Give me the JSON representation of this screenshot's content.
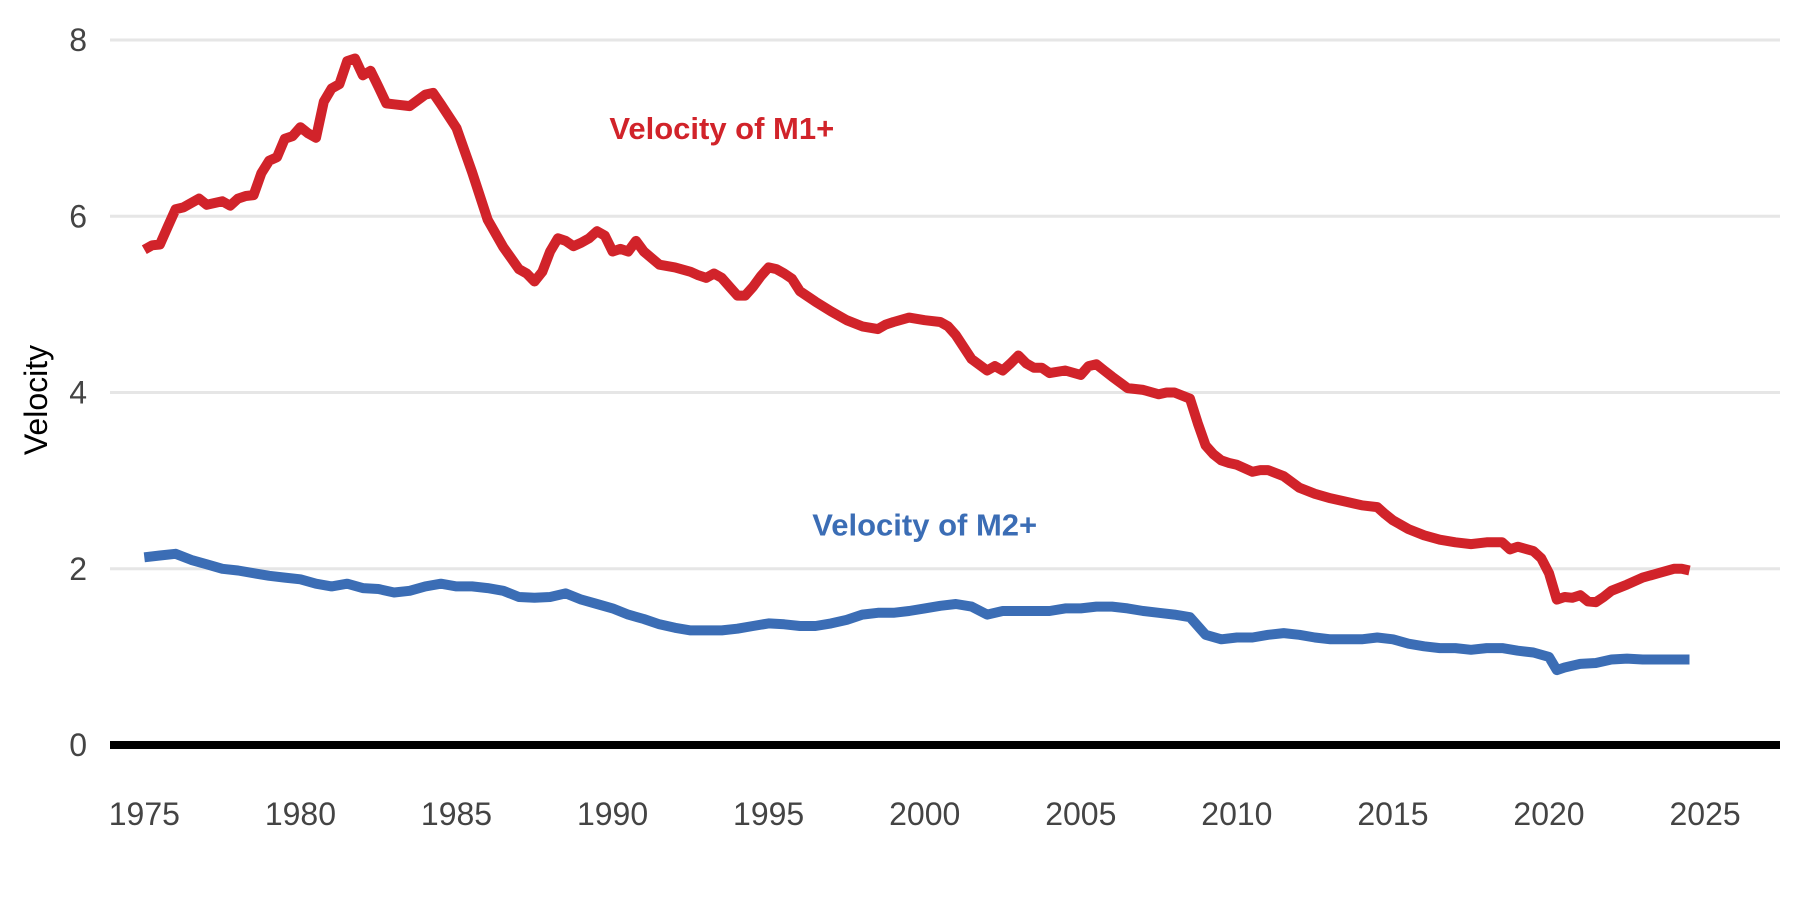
{
  "chart_data": {
    "type": "line",
    "title": "",
    "xlabel": "",
    "ylabel": "Velocity",
    "xlim": [
      1973.9,
      2027.4
    ],
    "ylim": [
      0,
      8
    ],
    "x_ticks": [
      "1975",
      "1980",
      "1985",
      "1990",
      "1995",
      "2000",
      "2005",
      "2010",
      "2015",
      "2020",
      "2025"
    ],
    "y_ticks": [
      "0",
      "2",
      "4",
      "6",
      "8"
    ],
    "grid": true,
    "legend": "none (series labelled directly on the plot)",
    "series": [
      {
        "name": "Velocity of M1+",
        "color": "#d1232a",
        "x": [
          1975.0,
          1975.25,
          1975.5,
          1975.75,
          1976.0,
          1976.25,
          1976.5,
          1976.75,
          1977.0,
          1977.25,
          1977.5,
          1977.75,
          1978.0,
          1978.25,
          1978.5,
          1978.75,
          1979.0,
          1979.25,
          1979.5,
          1979.75,
          1980.0,
          1980.25,
          1980.5,
          1980.75,
          1981.0,
          1981.25,
          1981.5,
          1981.75,
          1982.0,
          1982.25,
          1982.5,
          1982.75,
          1983.0,
          1983.5,
          1984.0,
          1984.25,
          1984.5,
          1985.0,
          1985.5,
          1986.0,
          1986.5,
          1987.0,
          1987.25,
          1987.5,
          1987.75,
          1988.0,
          1988.25,
          1988.5,
          1988.75,
          1989.0,
          1989.25,
          1989.5,
          1989.75,
          1990.0,
          1990.25,
          1990.5,
          1990.75,
          1991.0,
          1991.5,
          1992.0,
          1992.5,
          1992.75,
          1993.0,
          1993.25,
          1993.5,
          1993.75,
          1994.0,
          1994.25,
          1994.5,
          1994.75,
          1995.0,
          1995.25,
          1995.5,
          1995.75,
          1996.0,
          1996.5,
          1997.0,
          1997.5,
          1998.0,
          1998.5,
          1998.75,
          1999.0,
          1999.5,
          2000.0,
          2000.5,
          2000.75,
          2001.0,
          2001.5,
          2002.0,
          2002.25,
          2002.5,
          2002.75,
          2003.0,
          2003.25,
          2003.5,
          2003.75,
          2004.0,
          2004.5,
          2005.0,
          2005.25,
          2005.5,
          2005.75,
          2006.0,
          2006.5,
          2007.0,
          2007.5,
          2007.75,
          2008.0,
          2008.5,
          2008.75,
          2009.0,
          2009.25,
          2009.5,
          2009.75,
          2010.0,
          2010.5,
          2010.75,
          2011.0,
          2011.5,
          2012.0,
          2012.5,
          2013.0,
          2013.5,
          2014.0,
          2014.5,
          2014.75,
          2015.0,
          2015.5,
          2016.0,
          2016.5,
          2017.0,
          2017.5,
          2018.0,
          2018.5,
          2018.75,
          2019.0,
          2019.5,
          2019.75,
          2020.0,
          2020.25,
          2020.5,
          2020.75,
          2021.0,
          2021.25,
          2021.5,
          2021.75,
          2022.0,
          2022.5,
          2023.0,
          2023.5,
          2024.0,
          2024.25,
          2024.5
        ],
        "y": [
          5.62,
          5.67,
          5.68,
          5.88,
          6.08,
          6.1,
          6.15,
          6.2,
          6.13,
          6.15,
          6.17,
          6.12,
          6.2,
          6.23,
          6.24,
          6.49,
          6.63,
          6.67,
          6.88,
          6.91,
          7.01,
          6.94,
          6.89,
          7.3,
          7.45,
          7.5,
          7.76,
          7.79,
          7.6,
          7.65,
          7.47,
          7.28,
          7.27,
          7.25,
          7.38,
          7.4,
          7.27,
          7.0,
          6.5,
          5.96,
          5.65,
          5.4,
          5.35,
          5.26,
          5.37,
          5.6,
          5.75,
          5.72,
          5.66,
          5.7,
          5.75,
          5.83,
          5.78,
          5.6,
          5.63,
          5.6,
          5.72,
          5.6,
          5.45,
          5.42,
          5.37,
          5.33,
          5.3,
          5.35,
          5.3,
          5.2,
          5.1,
          5.1,
          5.2,
          5.32,
          5.42,
          5.4,
          5.35,
          5.29,
          5.15,
          5.03,
          4.92,
          4.82,
          4.75,
          4.72,
          4.77,
          4.8,
          4.85,
          4.82,
          4.8,
          4.75,
          4.65,
          4.38,
          4.25,
          4.3,
          4.25,
          4.33,
          4.42,
          4.33,
          4.28,
          4.28,
          4.22,
          4.25,
          4.2,
          4.3,
          4.32,
          4.25,
          4.18,
          4.05,
          4.03,
          3.98,
          4.0,
          4.0,
          3.93,
          3.65,
          3.4,
          3.3,
          3.23,
          3.2,
          3.18,
          3.1,
          3.12,
          3.12,
          3.05,
          2.92,
          2.85,
          2.8,
          2.76,
          2.72,
          2.7,
          2.62,
          2.55,
          2.45,
          2.38,
          2.33,
          2.3,
          2.28,
          2.3,
          2.3,
          2.22,
          2.25,
          2.2,
          2.12,
          1.95,
          1.65,
          1.68,
          1.67,
          1.7,
          1.63,
          1.62,
          1.68,
          1.75,
          1.82,
          1.9,
          1.95,
          2.0,
          2.0,
          1.98
        ]
      },
      {
        "name": "Velocity of M2+",
        "color": "#3b6db5",
        "x": [
          1975.0,
          1975.5,
          1976.0,
          1976.5,
          1977.0,
          1977.5,
          1978.0,
          1978.5,
          1979.0,
          1979.5,
          1980.0,
          1980.5,
          1981.0,
          1981.5,
          1982.0,
          1982.5,
          1983.0,
          1983.5,
          1984.0,
          1984.5,
          1985.0,
          1985.5,
          1986.0,
          1986.5,
          1987.0,
          1987.5,
          1988.0,
          1988.5,
          1989.0,
          1989.5,
          1990.0,
          1990.5,
          1991.0,
          1991.5,
          1992.0,
          1992.5,
          1993.0,
          1993.5,
          1994.0,
          1994.5,
          1995.0,
          1995.5,
          1996.0,
          1996.5,
          1997.0,
          1997.5,
          1998.0,
          1998.5,
          1999.0,
          1999.5,
          2000.0,
          2000.5,
          2001.0,
          2001.5,
          2002.0,
          2002.5,
          2003.0,
          2003.5,
          2004.0,
          2004.5,
          2005.0,
          2005.5,
          2006.0,
          2006.5,
          2007.0,
          2007.5,
          2008.0,
          2008.5,
          2009.0,
          2009.5,
          2010.0,
          2010.5,
          2011.0,
          2011.5,
          2012.0,
          2012.5,
          2013.0,
          2013.5,
          2014.0,
          2014.5,
          2015.0,
          2015.5,
          2016.0,
          2016.5,
          2017.0,
          2017.5,
          2018.0,
          2018.5,
          2019.0,
          2019.5,
          2020.0,
          2020.25,
          2020.5,
          2021.0,
          2021.5,
          2022.0,
          2022.5,
          2023.0,
          2023.5,
          2024.0,
          2024.5
        ],
        "y": [
          2.13,
          2.15,
          2.17,
          2.1,
          2.05,
          2.0,
          1.98,
          1.95,
          1.92,
          1.9,
          1.88,
          1.83,
          1.8,
          1.83,
          1.78,
          1.77,
          1.73,
          1.75,
          1.8,
          1.83,
          1.8,
          1.8,
          1.78,
          1.75,
          1.68,
          1.67,
          1.68,
          1.72,
          1.65,
          1.6,
          1.55,
          1.48,
          1.43,
          1.37,
          1.33,
          1.3,
          1.3,
          1.3,
          1.32,
          1.35,
          1.38,
          1.37,
          1.35,
          1.35,
          1.38,
          1.42,
          1.48,
          1.5,
          1.5,
          1.52,
          1.55,
          1.58,
          1.6,
          1.57,
          1.48,
          1.52,
          1.52,
          1.52,
          1.52,
          1.55,
          1.55,
          1.57,
          1.57,
          1.55,
          1.52,
          1.5,
          1.48,
          1.45,
          1.25,
          1.2,
          1.22,
          1.22,
          1.25,
          1.27,
          1.25,
          1.22,
          1.2,
          1.2,
          1.2,
          1.22,
          1.2,
          1.15,
          1.12,
          1.1,
          1.1,
          1.08,
          1.1,
          1.1,
          1.07,
          1.05,
          1.0,
          0.85,
          0.88,
          0.92,
          0.93,
          0.97,
          0.98,
          0.97,
          0.97,
          0.97,
          0.97
        ]
      }
    ],
    "annotations": [
      {
        "text": "Velocity of M1+",
        "x": 1993.5,
        "y": 7.0,
        "color": "#d1232a"
      },
      {
        "text": "Velocity of M2+",
        "x": 2000.0,
        "y": 2.5,
        "color": "#3b6db5"
      }
    ]
  }
}
